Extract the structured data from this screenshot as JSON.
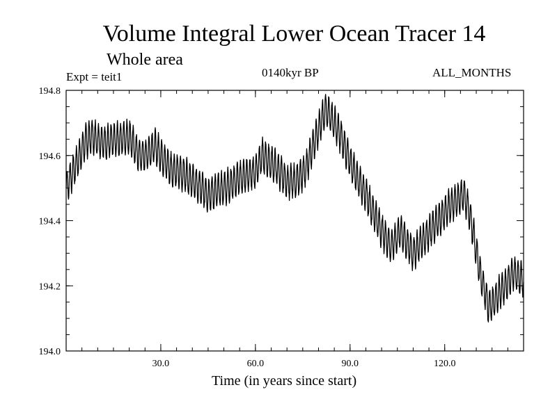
{
  "chart_data": {
    "type": "line",
    "title": "Volume Integral Lower Ocean Tracer 14",
    "subtitle": "Whole area",
    "experiment_label": "Expt = teit1",
    "period_label": "0140kyr BP",
    "months_label": "ALL_MONTHS",
    "xlabel": "Time (in years since start)",
    "ylabel": "",
    "xlim": [
      0,
      145
    ],
    "ylim": [
      194.0,
      194.8
    ],
    "x_ticks": [
      {
        "value": 30,
        "label": "30.0"
      },
      {
        "value": 60,
        "label": "60.0"
      },
      {
        "value": 90,
        "label": "90.0"
      },
      {
        "value": 120,
        "label": "120.0"
      }
    ],
    "y_ticks": [
      {
        "value": 194.0,
        "label": "194.0"
      },
      {
        "value": 194.2,
        "label": "194.2"
      },
      {
        "value": 194.4,
        "label": "194.4"
      },
      {
        "value": 194.6,
        "label": "194.6"
      },
      {
        "value": 194.8,
        "label": "194.8"
      }
    ],
    "x_minor_step": 5,
    "y_minor_step": 0.05,
    "oscillation_amplitude": 0.05,
    "oscillation_period_years": 1,
    "trend": {
      "x": [
        0,
        3,
        6,
        8,
        12,
        17,
        20,
        23,
        25,
        28,
        33,
        38,
        45,
        50,
        55,
        60,
        62,
        66,
        70,
        73,
        76,
        79,
        82,
        84,
        87,
        90,
        95,
        100,
        103,
        106,
        108,
        110,
        113,
        118,
        122,
        126,
        128,
        131,
        134,
        136,
        139,
        142,
        145
      ],
      "values": [
        194.5,
        194.57,
        194.64,
        194.66,
        194.64,
        194.65,
        194.66,
        194.6,
        194.6,
        194.63,
        194.56,
        194.54,
        194.48,
        194.5,
        194.53,
        194.55,
        194.6,
        194.57,
        194.52,
        194.52,
        194.56,
        194.65,
        194.74,
        194.72,
        194.66,
        194.58,
        194.48,
        194.37,
        194.32,
        194.37,
        194.33,
        194.3,
        194.34,
        194.4,
        194.45,
        194.48,
        194.42,
        194.25,
        194.13,
        194.16,
        194.2,
        194.24,
        194.22
      ]
    },
    "series": [
      {
        "name": "Lower Ocean Tracer 14",
        "color": "#000000",
        "stroke": "solid"
      }
    ],
    "grid": false
  }
}
